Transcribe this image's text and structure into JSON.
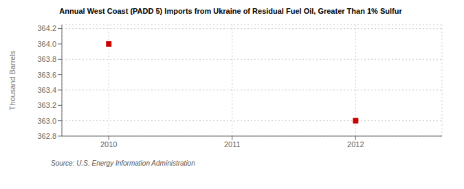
{
  "chart_data": {
    "type": "scatter",
    "title": "Annual West Coast (PADD 5) Imports from Ukraine of Residual Fuel Oil, Greater Than 1% Sulfur",
    "ylabel": "Thousand Barrels",
    "source": "Source: U.S. Energy Information Administration",
    "x": [
      2010,
      2012
    ],
    "values": [
      364.0,
      363.0
    ],
    "color": "#cc0000",
    "marker": "square",
    "xlim": [
      2009.62,
      2012.7
    ],
    "xticks": [
      2010,
      2011,
      2012
    ],
    "ylim": [
      362.8,
      364.25
    ],
    "yticks": [
      362.8,
      {
        "value": 363.0,
        "label": "363.0"
      },
      363.2,
      363.4,
      363.6,
      363.8,
      {
        "value": 364.0,
        "label": "364.0"
      },
      364.2
    ],
    "grid": true
  }
}
